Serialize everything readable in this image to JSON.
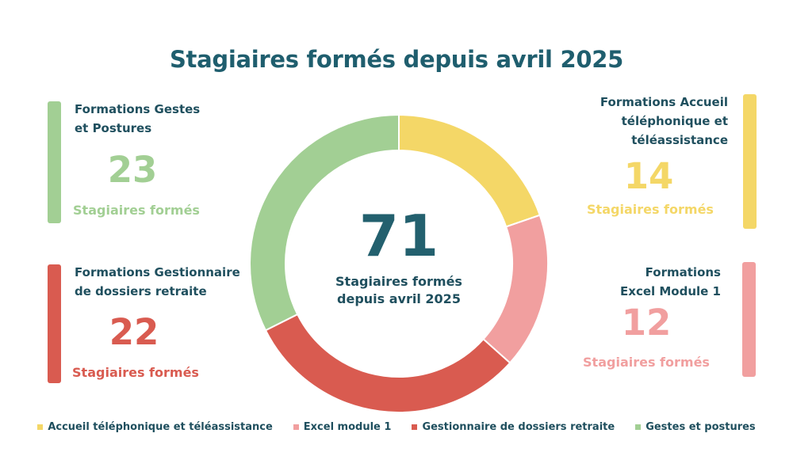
{
  "title": "Stagiaires formés depuis avril 2025",
  "center": {
    "total": "71",
    "caption_line1": "Stagiaires formés",
    "caption_line2": "depuis avril 2025"
  },
  "cards": {
    "gestes": {
      "title_line1": "Formations Gestes",
      "title_line2": "et Postures",
      "value": "23",
      "caption": "Stagiaires formés",
      "color": "#a2cf94"
    },
    "gestionnaire": {
      "title_line1": "Formations Gestionnaire",
      "title_line2": "de dossiers retraite",
      "value": "22",
      "caption": "Stagiaires formés",
      "color": "#d95b50"
    },
    "accueil": {
      "title_line1": "Formations Accueil",
      "title_line2": "téléphonique et",
      "title_line3": "téléassistance",
      "value": "14",
      "caption": "Stagiaires formés",
      "color": "#f4d767"
    },
    "excel": {
      "title_line1": "Formations",
      "title_line2": "Excel Module 1",
      "value": "12",
      "caption": "Stagiaires formés",
      "color": "#f19f9f"
    }
  },
  "chart_data": {
    "type": "pie",
    "title": "Stagiaires formés depuis avril 2025",
    "categories": [
      "Accueil téléphonique et téléassistance",
      "Excel module 1",
      "Gestionnaire de dossiers retraite",
      "Gestes et postures"
    ],
    "values": [
      14,
      12,
      22,
      23
    ],
    "colors": [
      "#f4d767",
      "#f19f9f",
      "#d95b50",
      "#a2cf94"
    ],
    "legend_position": "bottom"
  }
}
